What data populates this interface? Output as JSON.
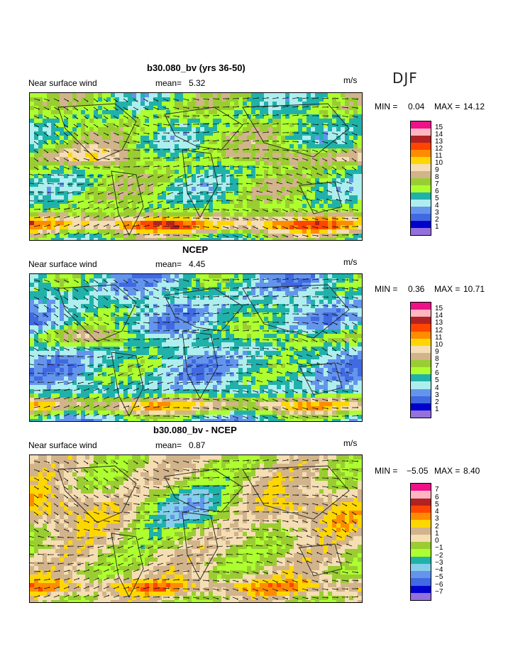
{
  "season": "DJF",
  "panels": [
    {
      "title": "b30.080_bv (yrs 36-50)",
      "variable": "Near surface wind",
      "mean_label": "mean=",
      "mean_value": "5.32",
      "units": "m/s",
      "min_label": "MIN =",
      "min_value": "0.04",
      "max_label": "MAX =",
      "max_value": "14.12",
      "levels": [
        "15",
        "14",
        "13",
        "12",
        "11",
        "10",
        "9",
        "8",
        "7",
        "6",
        "5",
        "4",
        "3",
        "2",
        "1"
      ],
      "colors": [
        "#ee1188",
        "#ffb6c1",
        "#b22222",
        "#ff4500",
        "#ff8c00",
        "#ffd700",
        "#f5deb3",
        "#d2b48c",
        "#9acd32",
        "#adff2f",
        "#20b2aa",
        "#aeeeee",
        "#6495ed",
        "#4169e1",
        "#0000cd",
        "#9370db"
      ]
    },
    {
      "title": "NCEP",
      "variable": "Near surface wind",
      "mean_label": "mean=",
      "mean_value": "4.45",
      "units": "m/s",
      "min_label": "MIN =",
      "min_value": "0.36",
      "max_label": "MAX =",
      "max_value": "10.71",
      "levels": [
        "15",
        "14",
        "13",
        "12",
        "11",
        "10",
        "9",
        "8",
        "7",
        "6",
        "5",
        "4",
        "3",
        "2",
        "1"
      ],
      "colors": [
        "#ee1188",
        "#ffb6c1",
        "#b22222",
        "#ff4500",
        "#ff8c00",
        "#ffd700",
        "#f5deb3",
        "#d2b48c",
        "#9acd32",
        "#adff2f",
        "#20b2aa",
        "#aeeeee",
        "#6495ed",
        "#4169e1",
        "#0000cd",
        "#9370db"
      ]
    },
    {
      "title": "b30.080_bv - NCEP",
      "variable": "Near surface wind",
      "mean_label": "mean=",
      "mean_value": "0.87",
      "units": "m/s",
      "min_label": "MIN =",
      "min_value": "−5.05",
      "max_label": "MAX =",
      "max_value": "8.40",
      "levels": [
        "7",
        "6",
        "5",
        "4",
        "3",
        "2",
        "1",
        "0",
        "−1",
        "−2",
        "−3",
        "−4",
        "−5",
        "−6",
        "−7"
      ],
      "colors": [
        "#ee1188",
        "#ffb6c1",
        "#b22222",
        "#ff4500",
        "#ff8c00",
        "#ffd700",
        "#d2b48c",
        "#f5deb3",
        "#9acd32",
        "#adff2f",
        "#20b2aa",
        "#87ceeb",
        "#6495ed",
        "#4169e1",
        "#0000cd",
        "#9370db"
      ]
    }
  ]
}
